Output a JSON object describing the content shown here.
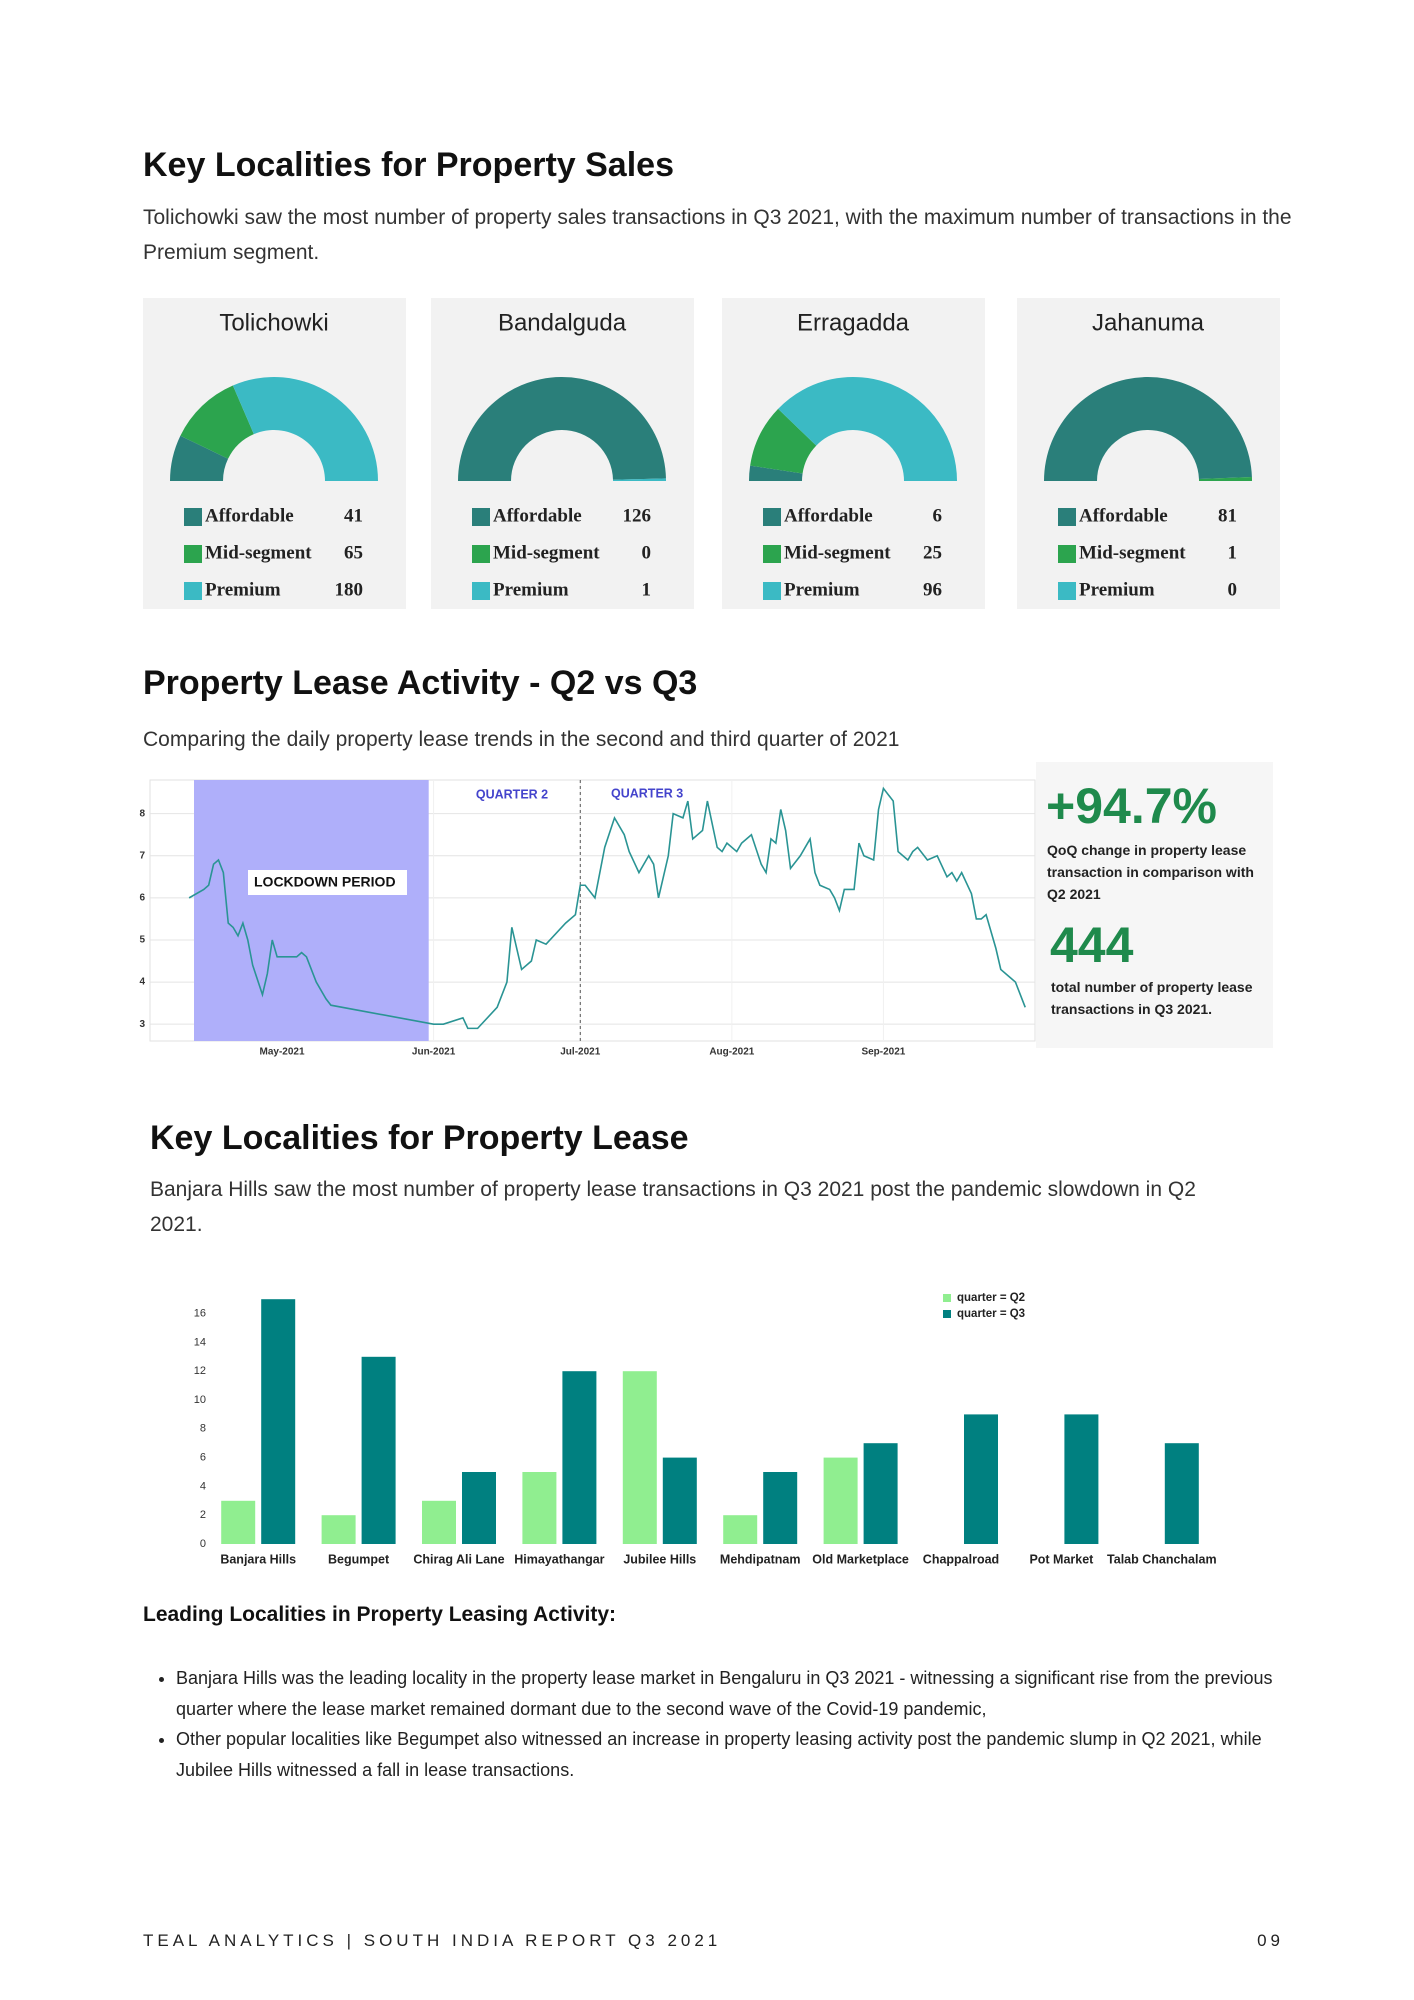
{
  "sales": {
    "title": "Key Localities for Property Sales",
    "text": "Tolichowki saw the most number of property sales transactions in Q3 2021, with the maximum number of transactions in the Premium segment."
  },
  "lease_activity": {
    "title": "Property Lease Activity - Q2 vs Q3",
    "text": "Comparing the daily property lease trends in the second and third quarter of 2021",
    "change": "+94.7%",
    "change_text": "QoQ change in property lease transaction in comparison with Q2 2021",
    "total": "444",
    "total_text": "total number of property lease transactions in Q3 2021."
  },
  "lease_localities": {
    "title": "Key Localities for Property Lease",
    "text": "Banjara Hills saw the most number of property lease transactions in Q3 2021 post the pandemic slowdown in Q2 2021."
  },
  "leading": {
    "title": "Leading Localities in Property Leasing Activity:",
    "bullets": [
      "Banjara Hills was the leading locality in the property lease market in Bengaluru in Q3 2021 - witnessing a significant rise from the previous quarter where the lease market remained dormant due to the second wave of the Covid-19 pandemic,",
      "Other popular localities like Begumpet also witnessed an increase in property leasing activity post the pandemic slump in Q2 2021, while Jubilee Hills witnessed a fall in lease transactions."
    ]
  },
  "footer": {
    "left": "TEAL ANALYTICS | SOUTH INDIA REPORT Q3 2021",
    "page": "09"
  },
  "chart_data": [
    {
      "type": "pie",
      "title": "Tolichowki",
      "categories": [
        "Affordable",
        "Mid-segment",
        "Premium"
      ],
      "values": [
        41,
        65,
        180
      ],
      "colors": [
        "#2a7f7a",
        "#2ca44e",
        "#3bbac4"
      ]
    },
    {
      "type": "pie",
      "title": "Bandalguda",
      "categories": [
        "Affordable",
        "Mid-segment",
        "Premium"
      ],
      "values": [
        126,
        0,
        1
      ],
      "colors": [
        "#2a7f7a",
        "#2ca44e",
        "#3bbac4"
      ]
    },
    {
      "type": "pie",
      "title": "Erragadda",
      "categories": [
        "Affordable",
        "Mid-segment",
        "Premium"
      ],
      "values": [
        6,
        25,
        96
      ],
      "colors": [
        "#2a7f7a",
        "#2ca44e",
        "#3bbac4"
      ]
    },
    {
      "type": "pie",
      "title": "Jahanuma",
      "categories": [
        "Affordable",
        "Mid-segment",
        "Premium"
      ],
      "values": [
        81,
        1,
        0
      ],
      "colors": [
        "#2a7f7a",
        "#2ca44e",
        "#3bbac4"
      ]
    },
    {
      "type": "line",
      "color": "#2a9494",
      "x": [
        102,
        105,
        106,
        107,
        108,
        109,
        110,
        111,
        112,
        113,
        114,
        115,
        117,
        118,
        119,
        120,
        122,
        124,
        125,
        126,
        128,
        130,
        131,
        152,
        154,
        158,
        159,
        161,
        165,
        167,
        168,
        170,
        172,
        173,
        175,
        179,
        181,
        182,
        183,
        185,
        187,
        189,
        191,
        192,
        194,
        196,
        197,
        198,
        200,
        201,
        203,
        204,
        205,
        207,
        208,
        210,
        211,
        212,
        214,
        215,
        217,
        219,
        220,
        221,
        222,
        223,
        224,
        225,
        227,
        229,
        230,
        231,
        233,
        234,
        235,
        236,
        238,
        239,
        240,
        242,
        243,
        244,
        246,
        247,
        249,
        250,
        251,
        253,
        255,
        257,
        258,
        259,
        260,
        262,
        263,
        264,
        265,
        267,
        268,
        270,
        271,
        273
      ],
      "values": [
        6.0,
        6.2,
        6.3,
        6.8,
        6.9,
        6.6,
        5.4,
        5.3,
        5.1,
        5.4,
        5.0,
        4.4,
        3.7,
        4.2,
        5.0,
        4.6,
        4.6,
        4.6,
        4.7,
        4.6,
        4.0,
        3.6,
        3.45,
        3.0,
        3.0,
        3.15,
        2.9,
        2.9,
        3.4,
        4.0,
        5.3,
        4.3,
        4.5,
        5.0,
        4.9,
        5.4,
        5.6,
        6.3,
        6.3,
        6.0,
        7.2,
        7.9,
        7.5,
        7.1,
        6.6,
        7.0,
        6.8,
        6.0,
        7.0,
        8.0,
        7.9,
        8.3,
        7.4,
        7.6,
        8.3,
        7.2,
        7.1,
        7.3,
        7.1,
        7.3,
        7.5,
        6.8,
        6.6,
        7.4,
        7.3,
        8.1,
        7.6,
        6.7,
        7.0,
        7.4,
        6.6,
        6.3,
        6.2,
        6.0,
        5.7,
        6.2,
        6.2,
        7.3,
        7.0,
        6.9,
        8.1,
        8.6,
        8.3,
        7.1,
        6.9,
        7.1,
        7.2,
        6.9,
        7.0,
        6.5,
        6.6,
        6.4,
        6.6,
        6.1,
        5.5,
        5.5,
        5.6,
        4.8,
        4.3,
        4.1,
        4.0,
        3.4
      ],
      "xlim": [
        94,
        275
      ],
      "ylim": [
        2.6,
        8.8
      ],
      "xticks": [
        {
          "value": 121,
          "label": "May-2021"
        },
        {
          "value": 152,
          "label": "Jun-2021"
        },
        {
          "value": 182,
          "label": "Jul-2021"
        },
        {
          "value": 213,
          "label": "Aug-2021"
        },
        {
          "value": 244,
          "label": "Sep-2021"
        }
      ],
      "yticks": [
        3,
        4,
        5,
        6,
        7,
        8
      ],
      "grid": true,
      "shaded": {
        "label": "LOCKDOWN PERIOD",
        "start": 103,
        "end": 151,
        "color": "#afaffa"
      },
      "divider": 182,
      "annotations": [
        "QUARTER 2",
        "QUARTER 3"
      ]
    },
    {
      "type": "bar",
      "categories": [
        "Banjara Hills",
        "Begumpet",
        "Chirag Ali Lane",
        "Himayathangar",
        "Jubilee Hills",
        "Mehdipatnam",
        "Old Marketplace",
        "Chappalroad",
        "Pot Market",
        "Talab Chanchalam"
      ],
      "series": [
        {
          "name": "quarter = Q2",
          "color": "#90ee90",
          "values": [
            3,
            2,
            3,
            5,
            12,
            2,
            6,
            0,
            0,
            0
          ]
        },
        {
          "name": "quarter = Q3",
          "color": "#008080",
          "values": [
            17,
            13,
            5,
            12,
            6,
            5,
            7,
            9,
            9,
            7
          ]
        }
      ],
      "ylim": [
        0,
        17.5
      ],
      "yticks": [
        0,
        2,
        4,
        6,
        8,
        10,
        12,
        14,
        16
      ]
    }
  ]
}
